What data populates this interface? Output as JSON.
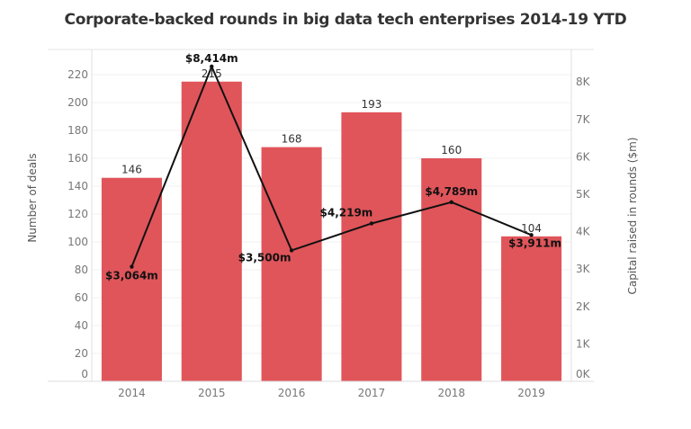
{
  "chart_data": {
    "type": "bar",
    "title": "Corporate-backed rounds in big data tech enterprises 2014-19 YTD",
    "categories": [
      "2014",
      "2015",
      "2016",
      "2017",
      "2018",
      "2019"
    ],
    "series": [
      {
        "name": "Number of deals",
        "type": "bar",
        "axis": "left",
        "values": [
          146,
          215,
          168,
          193,
          160,
          104
        ],
        "labels": [
          "146",
          "215",
          "168",
          "193",
          "160",
          "104"
        ],
        "color": "#e0555a"
      },
      {
        "name": "Capital raised in rounds ($m)",
        "type": "line",
        "axis": "right",
        "values": [
          3064,
          8414,
          3500,
          4219,
          4789,
          3911
        ],
        "labels": [
          "$3,064m",
          "$8,414m",
          "$3,500m",
          "$4,219m",
          "$4,789m",
          "$3,911m"
        ],
        "color": "#111111"
      }
    ],
    "ylabel": "Number of deals",
    "y2label": "Capital raised in rounds ($m)",
    "xlabel": "",
    "ylim": [
      0,
      220
    ],
    "y2lim": [
      0,
      8000
    ],
    "yticks": [
      "0",
      "20",
      "40",
      "60",
      "80",
      "100",
      "120",
      "140",
      "160",
      "180",
      "200",
      "220"
    ],
    "y2ticks": [
      "0K",
      "1K",
      "2K",
      "3K",
      "4K",
      "5K",
      "6K",
      "7K",
      "8K"
    ],
    "grid": true,
    "legend": "none"
  }
}
